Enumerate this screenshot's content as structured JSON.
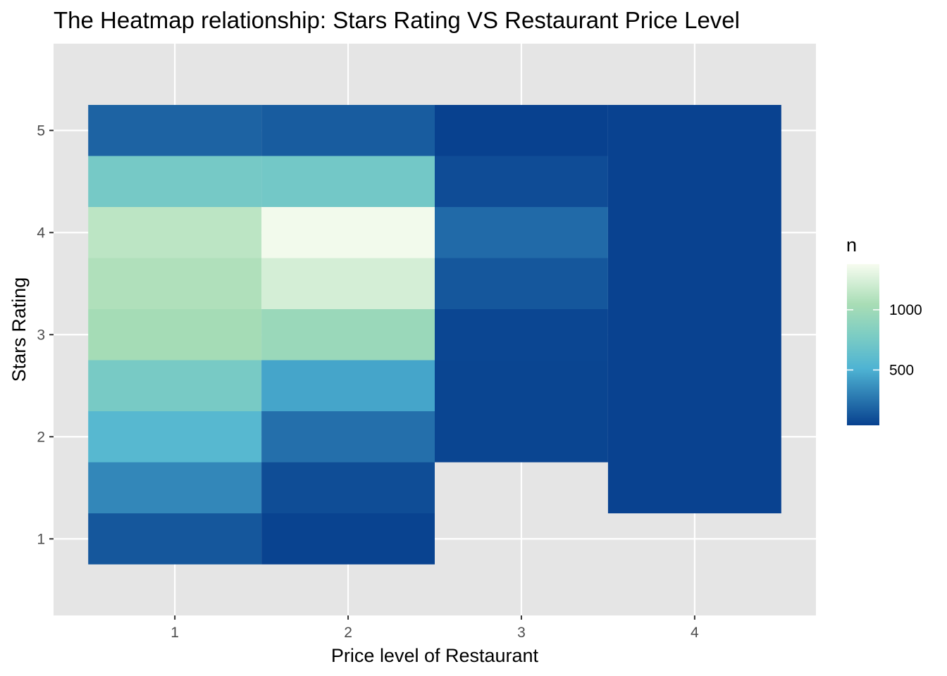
{
  "chart_data": {
    "type": "heatmap",
    "title": "The Heatmap relationship: Stars Rating VS Restaurant Price Level",
    "xlabel": "Price level of Restaurant",
    "ylabel": "Stars Rating",
    "x_ticks": [
      "1",
      "2",
      "3",
      "4"
    ],
    "y_ticks": [
      "1",
      "2",
      "3",
      "4",
      "5"
    ],
    "xlim": [
      0.5,
      4.5
    ],
    "ylim": [
      0.5,
      5.5
    ],
    "tile_width": 1,
    "tile_height": 0.5,
    "grid": true,
    "legend": {
      "title": "n",
      "position": "right",
      "ticks": [
        500,
        1000
      ],
      "min": 40,
      "max": 1380,
      "low_color": "#08418f",
      "mid_color": "#4eb3d3",
      "mid2_color": "#7bccc4",
      "mid3_color": "#a8ddb5",
      "high_color": "#f7fcf0"
    },
    "cells": [
      {
        "x": 1,
        "y": 1.0,
        "n": 130
      },
      {
        "x": 1,
        "y": 1.5,
        "n": 330
      },
      {
        "x": 1,
        "y": 2.0,
        "n": 560
      },
      {
        "x": 1,
        "y": 2.5,
        "n": 760
      },
      {
        "x": 1,
        "y": 3.0,
        "n": 1030
      },
      {
        "x": 1,
        "y": 3.5,
        "n": 1080
      },
      {
        "x": 1,
        "y": 4.0,
        "n": 1130
      },
      {
        "x": 1,
        "y": 4.5,
        "n": 750
      },
      {
        "x": 1,
        "y": 5.0,
        "n": 180
      },
      {
        "x": 2,
        "y": 1.0,
        "n": 50
      },
      {
        "x": 2,
        "y": 1.5,
        "n": 90
      },
      {
        "x": 2,
        "y": 2.0,
        "n": 230
      },
      {
        "x": 2,
        "y": 2.5,
        "n": 450
      },
      {
        "x": 2,
        "y": 3.0,
        "n": 960
      },
      {
        "x": 2,
        "y": 3.5,
        "n": 1230
      },
      {
        "x": 2,
        "y": 4.0,
        "n": 1360
      },
      {
        "x": 2,
        "y": 4.5,
        "n": 730
      },
      {
        "x": 2,
        "y": 5.0,
        "n": 150
      },
      {
        "x": 3,
        "y": 2.0,
        "n": 55
      },
      {
        "x": 3,
        "y": 2.5,
        "n": 55
      },
      {
        "x": 3,
        "y": 3.0,
        "n": 60
      },
      {
        "x": 3,
        "y": 3.5,
        "n": 130
      },
      {
        "x": 3,
        "y": 4.0,
        "n": 210
      },
      {
        "x": 3,
        "y": 4.5,
        "n": 85
      },
      {
        "x": 3,
        "y": 5.0,
        "n": 40
      },
      {
        "x": 4,
        "y": 1.5,
        "n": 45
      },
      {
        "x": 4,
        "y": 2.0,
        "n": 45
      },
      {
        "x": 4,
        "y": 2.5,
        "n": 45
      },
      {
        "x": 4,
        "y": 3.0,
        "n": 45
      },
      {
        "x": 4,
        "y": 3.5,
        "n": 45
      },
      {
        "x": 4,
        "y": 4.0,
        "n": 45
      },
      {
        "x": 4,
        "y": 4.5,
        "n": 45
      },
      {
        "x": 4,
        "y": 5.0,
        "n": 45
      }
    ]
  }
}
